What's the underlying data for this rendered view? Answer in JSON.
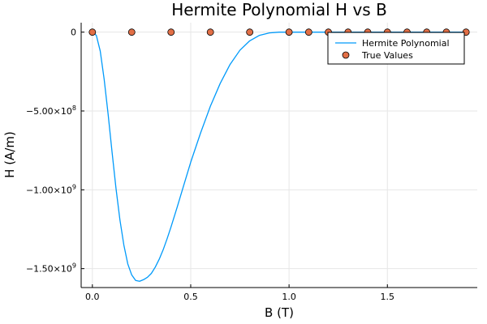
{
  "chart_data": {
    "type": "line",
    "title": "Hermite Polynomial H vs B",
    "xlabel": "B (T)",
    "ylabel": "H (A/m)",
    "xlim": [
      -0.057,
      1.957
    ],
    "ylim": [
      -1620000000,
      60000000
    ],
    "grid": true,
    "legend_position": "top-right",
    "x_ticks": [
      {
        "value": 0.0,
        "label": "0.0"
      },
      {
        "value": 0.5,
        "label": "0.5"
      },
      {
        "value": 1.0,
        "label": "1.0"
      },
      {
        "value": 1.5,
        "label": "1.5"
      }
    ],
    "y_ticks": [
      {
        "value": 0,
        "mantissa": "0",
        "exp": ""
      },
      {
        "value": -500000000,
        "mantissa": "−5.00×10",
        "exp": "8"
      },
      {
        "value": -1000000000,
        "mantissa": "−1.00×10",
        "exp": "9"
      },
      {
        "value": -1500000000,
        "mantissa": "−1.50×10",
        "exp": "9"
      }
    ],
    "series": [
      {
        "name": "Hermite Polynomial",
        "kind": "line",
        "color": "#009AFA",
        "x": [
          0.0,
          0.02,
          0.04,
          0.06,
          0.08,
          0.1,
          0.12,
          0.14,
          0.16,
          0.18,
          0.2,
          0.22,
          0.24,
          0.26,
          0.28,
          0.3,
          0.32,
          0.34,
          0.36,
          0.38,
          0.4,
          0.43,
          0.46,
          0.5,
          0.55,
          0.6,
          0.65,
          0.7,
          0.75,
          0.8,
          0.85,
          0.9,
          0.95,
          1.0,
          1.05,
          1.1,
          1.15,
          1.2,
          1.3,
          1.4,
          1.5,
          1.6,
          1.7,
          1.8,
          1.9
        ],
        "y": [
          0,
          -20000000,
          -120000000,
          -300000000,
          -520000000,
          -760000000,
          -990000000,
          -1190000000,
          -1350000000,
          -1470000000,
          -1540000000,
          -1575000000,
          -1580000000,
          -1570000000,
          -1555000000,
          -1530000000,
          -1490000000,
          -1440000000,
          -1380000000,
          -1310000000,
          -1235000000,
          -1115000000,
          -990000000,
          -825000000,
          -640000000,
          -470000000,
          -325000000,
          -205000000,
          -115000000,
          -55000000,
          -20000000,
          -5000000,
          0,
          0,
          0,
          0,
          0,
          0,
          0,
          0,
          0,
          0,
          0,
          0,
          0
        ]
      },
      {
        "name": "True Values",
        "kind": "scatter",
        "color": "#E26F46",
        "x": [
          0.0,
          0.2,
          0.4,
          0.6,
          0.8,
          1.0,
          1.1,
          1.2,
          1.3,
          1.4,
          1.5,
          1.6,
          1.7,
          1.8,
          1.9
        ],
        "y": [
          0,
          0,
          0,
          0,
          0,
          0,
          0,
          0,
          0,
          0,
          0,
          0,
          0,
          0,
          0
        ]
      }
    ]
  }
}
